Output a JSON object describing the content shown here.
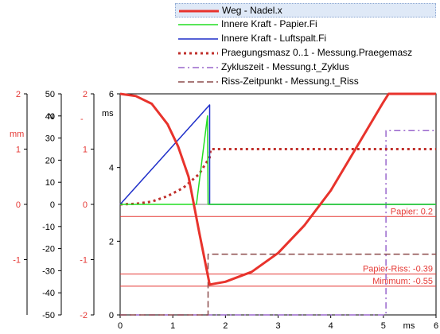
{
  "chart_data": {
    "type": "line",
    "x_axis": {
      "ticks": [
        "0",
        "1",
        "2",
        "3",
        "4",
        "5",
        "6"
      ],
      "unit": "ms",
      "range": [
        0,
        6
      ]
    },
    "y_axes": [
      {
        "id": "mm",
        "unit": "mm",
        "color": "#e53935",
        "range": [
          -2,
          2
        ],
        "ticks": [
          "2",
          "1",
          "0",
          "-1"
        ]
      },
      {
        "id": "N",
        "unit": "N",
        "color": "#000000",
        "range": [
          -50,
          50
        ],
        "ticks": [
          "50",
          "40",
          "30",
          "20",
          "10",
          "0",
          "-10",
          "-20",
          "-30",
          "-40",
          "-50"
        ]
      },
      {
        "id": "ratio",
        "unit": "-",
        "color": "#e53935",
        "range": [
          -2,
          2
        ],
        "ticks": [
          "2",
          "1",
          "0",
          "-1",
          "-2"
        ]
      },
      {
        "id": "ms",
        "unit": "ms",
        "color": "#000000",
        "range": [
          0,
          6
        ],
        "ticks": [
          "6",
          "4",
          "2",
          "0"
        ]
      }
    ],
    "series": [
      {
        "name": "Weg - Nadel.x",
        "axis": "mm",
        "style": "solid-thick",
        "color": "#e8332c",
        "x": [
          0,
          0.3,
          0.6,
          0.9,
          1.1,
          1.3,
          1.5,
          1.7,
          2.0,
          2.5,
          3.0,
          3.5,
          4.0,
          4.5,
          5.0,
          5.1,
          6.0
        ],
        "y": [
          2,
          1.96,
          1.82,
          1.45,
          1.05,
          0.5,
          -0.5,
          -1.45,
          -1.4,
          -1.22,
          -0.88,
          -0.38,
          0.25,
          1.05,
          1.85,
          2,
          2
        ]
      },
      {
        "name": "Innere Kraft - Papier.Fi",
        "axis": "N",
        "style": "solid",
        "color": "#22dd22",
        "x": [
          0,
          1.45,
          1.66,
          1.67,
          1.67,
          6.0
        ],
        "y": [
          0,
          0,
          40,
          0,
          0,
          0
        ]
      },
      {
        "name": "Innere Kraft - Luftspalt.Fi",
        "axis": "N",
        "style": "solid",
        "color": "#1f2fc9",
        "x": [
          0,
          1.7,
          1.7,
          6.0
        ],
        "y": [
          0,
          45,
          0,
          0
        ]
      },
      {
        "name": "Praegungsmasz 0..1 - Messung.Praegemasz",
        "axis": "ratio",
        "style": "dotted",
        "color": "#c0302c",
        "x": [
          0,
          0.3,
          0.6,
          0.9,
          1.2,
          1.5,
          1.7,
          1.72,
          6.0
        ],
        "y": [
          0,
          0.01,
          0.05,
          0.15,
          0.3,
          0.55,
          0.85,
          1,
          1
        ]
      },
      {
        "name": "Zykluszeit - Messung.t_Zyklus",
        "axis": "ms",
        "style": "dashdot",
        "color": "#9966cc",
        "x": [
          0,
          5.05,
          5.05,
          6.0
        ],
        "y": [
          0,
          0,
          5.0,
          5.0
        ]
      },
      {
        "name": "Riss-Zeitpunkt - Messung.t_Riss",
        "axis": "ms",
        "style": "dashed",
        "color": "#8b4a4a",
        "x": [
          0,
          1.67,
          1.67,
          6.0
        ],
        "y": [
          0,
          0,
          1.65,
          1.65
        ]
      }
    ],
    "reference_lines": [
      {
        "label": "Papier:  0.2",
        "axis": "mm",
        "y": -0.22
      },
      {
        "label": "Papier-Riss: -0.39",
        "axis": "mm",
        "y": -1.26
      },
      {
        "label": "Minimum: -0.55",
        "axis": "mm",
        "y": -1.48
      }
    ],
    "grid": false,
    "legend_position": "top-right"
  }
}
